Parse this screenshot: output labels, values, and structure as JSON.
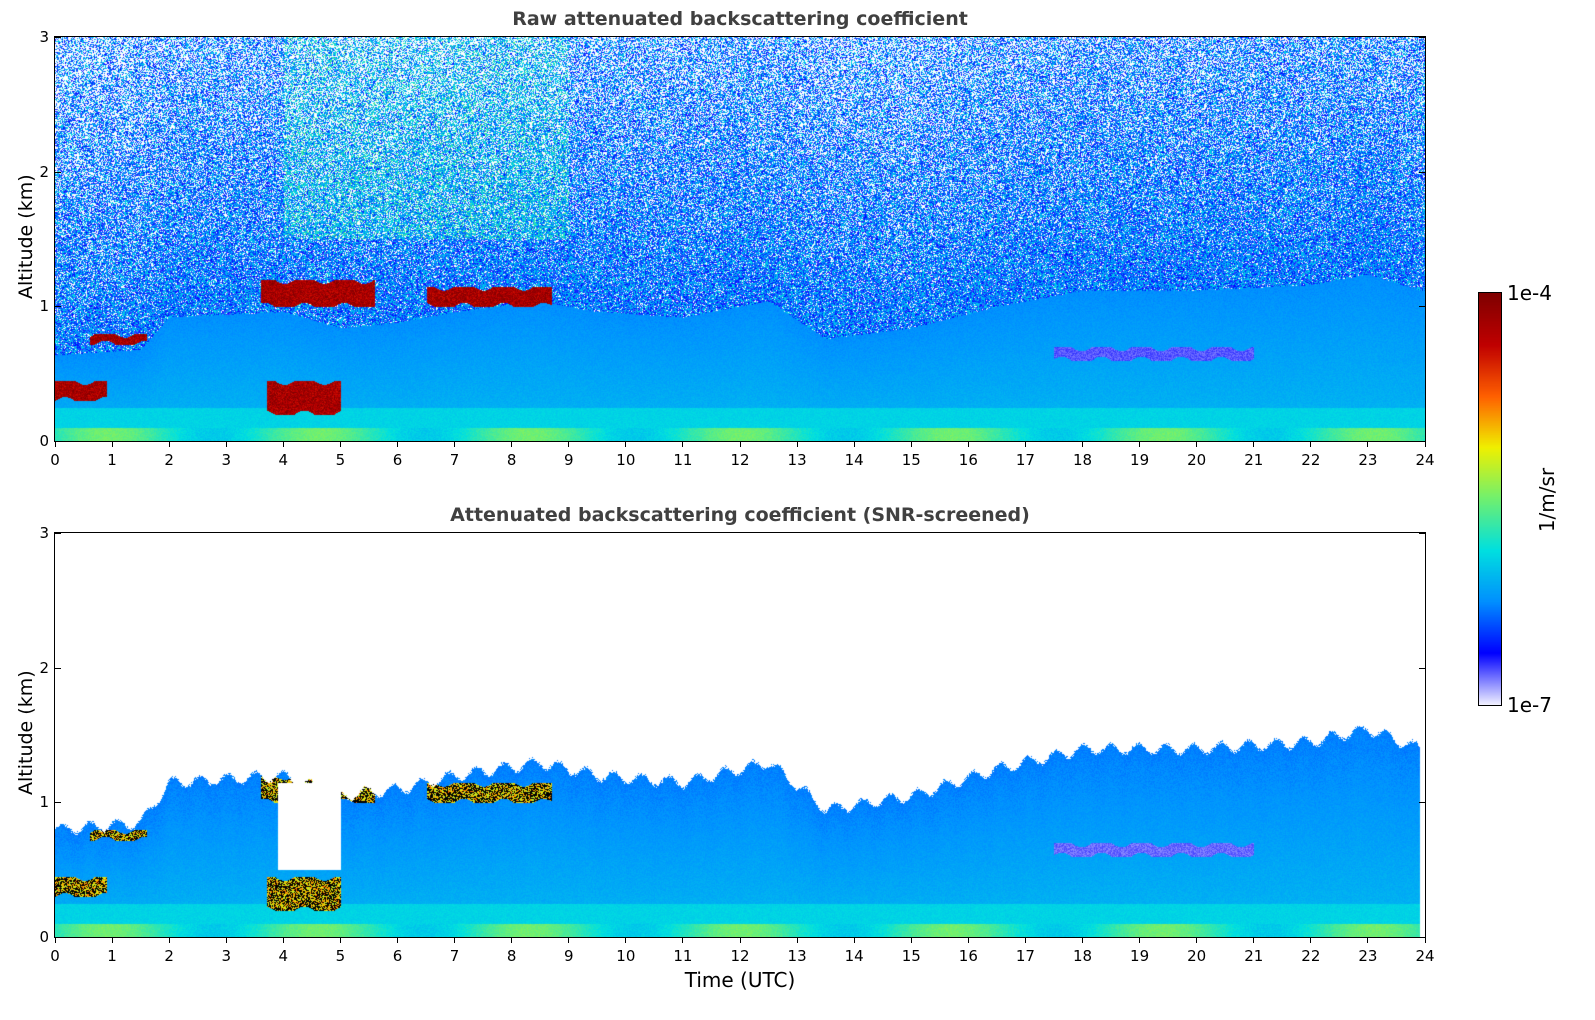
{
  "chart_data": [
    {
      "type": "heatmap",
      "title": "Raw attenuated backscattering coefficient",
      "xlabel": "",
      "ylabel": "Altitude (km)",
      "x_range": [
        0,
        24
      ],
      "y_range": [
        0,
        3
      ],
      "x_ticks": [
        "0",
        "1",
        "2",
        "3",
        "4",
        "5",
        "6",
        "7",
        "8",
        "9",
        "10",
        "11",
        "12",
        "13",
        "14",
        "15",
        "16",
        "17",
        "18",
        "19",
        "20",
        "21",
        "22",
        "23",
        "24"
      ],
      "y_ticks": [
        "0",
        "1",
        "2",
        "3"
      ],
      "features": [
        {
          "time": [
            0.0,
            0.9
          ],
          "altitude": [
            0.3,
            0.45
          ],
          "level": "high"
        },
        {
          "time": [
            0.6,
            1.6
          ],
          "altitude": [
            0.72,
            0.8
          ],
          "level": "high"
        },
        {
          "time": [
            3.6,
            5.6
          ],
          "altitude": [
            1.0,
            1.2
          ],
          "level": "high"
        },
        {
          "time": [
            3.7,
            5.0
          ],
          "altitude": [
            0.2,
            0.45
          ],
          "level": "high"
        },
        {
          "time": [
            6.5,
            8.7
          ],
          "altitude": [
            1.0,
            1.15
          ],
          "level": "high"
        },
        {
          "time": [
            17.5,
            21.0
          ],
          "altitude": [
            0.6,
            0.7
          ],
          "level": "medium"
        }
      ]
    },
    {
      "type": "heatmap",
      "title": "Attenuated backscattering coefficient (SNR-screened)",
      "xlabel": "Time (UTC)",
      "ylabel": "Altitude (km)",
      "x_range": [
        0,
        24
      ],
      "y_range": [
        0,
        3
      ],
      "x_ticks": [
        "0",
        "1",
        "2",
        "3",
        "4",
        "5",
        "6",
        "7",
        "8",
        "9",
        "10",
        "11",
        "12",
        "13",
        "14",
        "15",
        "16",
        "17",
        "18",
        "19",
        "20",
        "21",
        "22",
        "23",
        "24"
      ],
      "y_ticks": [
        "0",
        "1",
        "2",
        "3"
      ],
      "boundary_layer_top_km": [
        {
          "time": 0,
          "alt": 0.8
        },
        {
          "time": 1.5,
          "alt": 0.85
        },
        {
          "time": 2,
          "alt": 1.15
        },
        {
          "time": 4,
          "alt": 1.2
        },
        {
          "time": 5,
          "alt": 1.05
        },
        {
          "time": 6,
          "alt": 1.1
        },
        {
          "time": 7,
          "alt": 1.2
        },
        {
          "time": 8.5,
          "alt": 1.3
        },
        {
          "time": 9.5,
          "alt": 1.2
        },
        {
          "time": 11,
          "alt": 1.15
        },
        {
          "time": 12.5,
          "alt": 1.3
        },
        {
          "time": 13.5,
          "alt": 0.95
        },
        {
          "time": 15,
          "alt": 1.05
        },
        {
          "time": 16.5,
          "alt": 1.25
        },
        {
          "time": 18,
          "alt": 1.4
        },
        {
          "time": 20,
          "alt": 1.4
        },
        {
          "time": 22,
          "alt": 1.45
        },
        {
          "time": 23,
          "alt": 1.55
        },
        {
          "time": 23.9,
          "alt": 1.4
        }
      ]
    }
  ],
  "colorbar": {
    "max_label": "1e-4",
    "min_label": "1e-7",
    "unit": "1/m/sr",
    "colors": [
      "#f0f0ff",
      "#0000ff",
      "#0090ff",
      "#00e0e0",
      "#70f070",
      "#f0f000",
      "#ff6000",
      "#c00000",
      "#800000"
    ]
  }
}
